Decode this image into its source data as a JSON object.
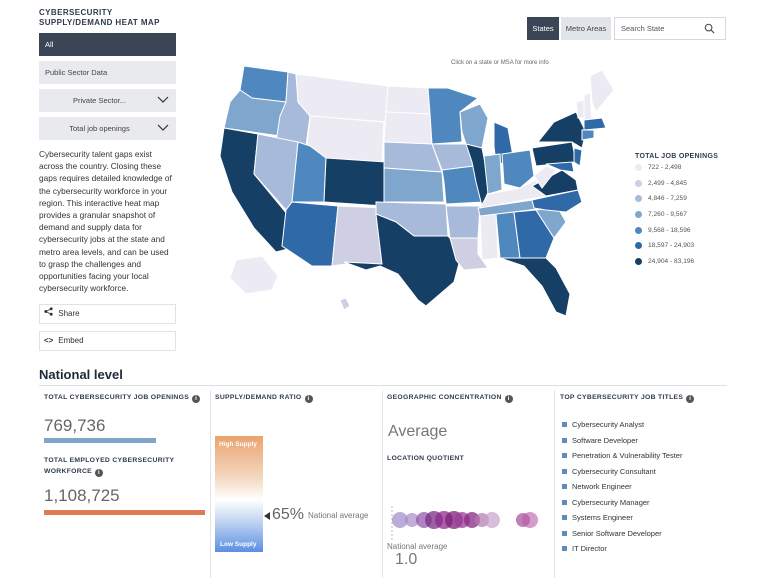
{
  "sidebar": {
    "title": "CYBERSECURITY SUPPLY/DEMAND HEAT MAP",
    "buttons": {
      "all": "All",
      "public": "Public Sector Data",
      "private": "Private Sector...",
      "metric": "Total job openings"
    },
    "description": "Cybersecurity talent gaps exist across the country. Closing these gaps requires detailed knowledge of the cybersecurity workforce in your region. This interactive heat map provides a granular snapshot of demand and supply data for cybersecurity jobs at the state and metro area levels, and can be used to grasp the challenges and opportunities facing your local cybersecurity workforce.",
    "share_label": "Share",
    "embed_label": "Embed"
  },
  "toolbar": {
    "states_label": "States",
    "metro_label": "Metro Areas",
    "search_placeholder": "Search State"
  },
  "map": {
    "hint": "Click on a state or MSA for more info"
  },
  "legend": {
    "title": "TOTAL JOB OPENINGS",
    "items": [
      {
        "label": "722 - 2,498",
        "color": "#eceaf3"
      },
      {
        "label": "2,499 - 4,845",
        "color": "#cfcfe4"
      },
      {
        "label": "4,846 - 7,259",
        "color": "#a7bad9"
      },
      {
        "label": "7,260 - 9,567",
        "color": "#7fa6cc"
      },
      {
        "label": "9,568 - 18,596",
        "color": "#4f88be"
      },
      {
        "label": "18,597 - 24,903",
        "color": "#2f69a8"
      },
      {
        "label": "24,904 - 83,196",
        "color": "#163f66"
      }
    ]
  },
  "national": {
    "title": "National level",
    "openings_head": "TOTAL CYBERSECURITY JOB OPENINGS",
    "openings_value": "769,736",
    "employed_head": "TOTAL EMPLOYED CYBERSECURITY WORKFORCE",
    "employed_value": "1,108,725",
    "ratio_head": "SUPPLY/DEMAND RATIO",
    "ratio_high": "High Supply",
    "ratio_low": "Low Supply",
    "ratio_value": "65%",
    "ratio_avg": "National average",
    "geo_head": "GEOGRAPHIC CONCENTRATION",
    "geo_value": "Average",
    "lq_label": "LOCATION QUOTIENT",
    "lq_avg_label": "National average",
    "lq_avg_value": "1.0",
    "titles_head": "TOP CYBERSECURITY JOB TITLES",
    "titles": [
      "Cybersecurity Analyst",
      "Software Developer",
      "Penetration & Vulnerability Tester",
      "Cybersecurity Consultant",
      "Network Engineer",
      "Cybersecurity Manager",
      "Systems Engineer",
      "Senior Software Developer",
      "IT Director"
    ]
  }
}
